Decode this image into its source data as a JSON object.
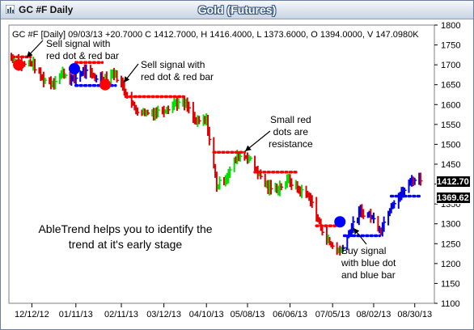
{
  "window": {
    "title": "GC #F Daily",
    "chart_title": "Gold (Futures)",
    "info_line": "GC #F [Daily] 09/03/13 +20.7000 C 1412.7000, H 1416.4000, L 1373.6000, O 1394.0000, V 147.0980K"
  },
  "annotations": {
    "sell1": "Sell signal with\nred dot & red bar",
    "sell2": "Sell signal with\nred dot & red bar",
    "resistance": "Small red\ndots are\nresistance",
    "buy": "Buy signal\nwith blue dot\nand blue bar",
    "abletrend": "AbleTrend helps you to identify the trend at it's early stage"
  },
  "price_tags": {
    "last": "1412.70",
    "stop": "1369.62"
  },
  "colors": {
    "up_bar": "#00e000",
    "down_bar": "#e00000",
    "uptrend_bar": "#0000e0",
    "stop_dot_red": "#ff0000",
    "stop_dot_blue": "#0000ff",
    "title_bar": "#c8d3e3"
  },
  "chart_data": {
    "type": "bar",
    "title": "Gold (Futures)",
    "y_axis": {
      "min": 1100,
      "max": 1800,
      "ticks": [
        1100,
        1150,
        1200,
        1250,
        1300,
        1350,
        1400,
        1450,
        1500,
        1550,
        1600,
        1650,
        1700,
        1750,
        1800
      ],
      "side": "right"
    },
    "x_axis": {
      "start": "2012-11-28",
      "end": "2013-09-03",
      "tick_labels": [
        "12/12/12",
        "01/11/13",
        "02/11/13",
        "03/12/13",
        "04/10/13",
        "05/08/13",
        "06/06/13",
        "07/05/13",
        "08/02/13",
        "08/30/13"
      ],
      "tick_dates": [
        "2012-12-12",
        "2013-01-11",
        "2013-02-11",
        "2013-03-12",
        "2013-04-10",
        "2013-05-08",
        "2013-06-06",
        "2013-07-05",
        "2013-08-02",
        "2013-08-30"
      ]
    },
    "close_series": {
      "dates": [
        "2012-11-28",
        "2012-12-05",
        "2012-12-12",
        "2012-12-19",
        "2012-12-26",
        "2013-01-02",
        "2013-01-09",
        "2013-01-16",
        "2013-01-23",
        "2013-01-30",
        "2013-02-06",
        "2013-02-13",
        "2013-02-20",
        "2013-02-27",
        "2013-03-06",
        "2013-03-13",
        "2013-03-20",
        "2013-03-27",
        "2013-04-03",
        "2013-04-10",
        "2013-04-17",
        "2013-04-24",
        "2013-05-01",
        "2013-05-08",
        "2013-05-15",
        "2013-05-22",
        "2013-05-29",
        "2013-06-05",
        "2013-06-12",
        "2013-06-19",
        "2013-06-26",
        "2013-07-03",
        "2013-07-10",
        "2013-07-17",
        "2013-07-24",
        "2013-07-31",
        "2013-08-07",
        "2013-08-14",
        "2013-08-21",
        "2013-08-28",
        "2013-09-03"
      ],
      "values": [
        1720,
        1700,
        1705,
        1665,
        1655,
        1680,
        1660,
        1685,
        1670,
        1665,
        1680,
        1640,
        1590,
        1580,
        1580,
        1590,
        1605,
        1600,
        1555,
        1560,
        1395,
        1420,
        1470,
        1470,
        1430,
        1390,
        1390,
        1410,
        1385,
        1370,
        1300,
        1250,
        1230,
        1285,
        1330,
        1320,
        1285,
        1350,
        1375,
        1410,
        1412.7
      ]
    },
    "stop_segments": [
      {
        "side": "red",
        "value": 1720,
        "from": "2012-11-29",
        "to": "2012-12-12"
      },
      {
        "side": "blue",
        "value": 1648,
        "from": "2013-01-11",
        "to": "2013-02-08"
      },
      {
        "side": "red",
        "value": 1706,
        "from": "2013-01-11",
        "to": "2013-01-30"
      },
      {
        "side": "red",
        "value": 1620,
        "from": "2013-02-14",
        "to": "2013-03-25"
      },
      {
        "side": "red",
        "value": 1480,
        "from": "2013-04-15",
        "to": "2013-05-06"
      },
      {
        "side": "red",
        "value": 1430,
        "from": "2013-05-13",
        "to": "2013-06-11"
      },
      {
        "side": "red",
        "value": 1295,
        "from": "2013-06-24",
        "to": "2013-07-10"
      },
      {
        "side": "blue",
        "value": 1270,
        "from": "2013-07-13",
        "to": "2013-08-06"
      },
      {
        "side": "blue",
        "value": 1369.62,
        "from": "2013-08-14",
        "to": "2013-09-03"
      }
    ],
    "signals": [
      {
        "type": "sell",
        "date": "2012-12-03",
        "value": 1700
      },
      {
        "type": "buy",
        "date": "2013-01-10",
        "value": 1690
      },
      {
        "type": "sell",
        "date": "2013-01-31",
        "value": 1650
      },
      {
        "type": "buy",
        "date": "2013-07-10",
        "value": 1305
      }
    ]
  }
}
